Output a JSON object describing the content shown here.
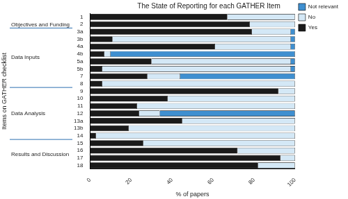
{
  "chart_data": {
    "type": "bar",
    "orientation": "horizontal",
    "stacked": true,
    "title": "The State of Reporting for each GATHER Item",
    "x_label": "% of papers",
    "y_label": "Items on GATHER checklist",
    "categories": [
      "1",
      "2",
      "3a",
      "3b",
      "4a",
      "4b",
      "5a",
      "5b",
      "7",
      "8",
      "9",
      "10",
      "11",
      "12",
      "13a",
      "13b",
      "14",
      "15",
      "16",
      "17",
      "18"
    ],
    "series": [
      {
        "name": "Yes",
        "color": "#1a1a1a",
        "values": [
          67,
          78,
          79,
          11,
          61,
          7,
          30,
          6,
          28,
          6,
          92,
          38,
          23,
          24,
          45,
          19,
          3,
          26,
          72,
          93,
          82
        ]
      },
      {
        "name": "No",
        "color": "#d4e8f6",
        "values": [
          33,
          22,
          19,
          87,
          37,
          3,
          68,
          92,
          16,
          94,
          8,
          62,
          77,
          10,
          55,
          81,
          97,
          74,
          28,
          7,
          18
        ]
      },
      {
        "name": "Not relevant",
        "color": "#3f8fd0",
        "values": [
          0,
          0,
          2,
          2,
          2,
          90,
          2,
          2,
          56,
          0,
          0,
          0,
          0,
          66,
          0,
          0,
          0,
          0,
          0,
          0,
          0
        ]
      }
    ],
    "groups": [
      {
        "label": "Objectives and Funding",
        "items": [
          "1",
          "2"
        ]
      },
      {
        "label": "Data Inputs",
        "items": [
          "3a",
          "3b",
          "4a",
          "4b",
          "5a",
          "5b",
          "7",
          "8"
        ]
      },
      {
        "label": "Data Analysis",
        "items": [
          "9",
          "10",
          "11",
          "12",
          "13a",
          "13b",
          "14"
        ]
      },
      {
        "label": "Results and Discussion",
        "items": [
          "15",
          "16",
          "17",
          "18"
        ]
      }
    ],
    "xlim": [
      0,
      100
    ],
    "xticks": [
      0,
      20,
      40,
      60,
      80,
      100
    ],
    "grid": false,
    "legend": "top-right"
  }
}
